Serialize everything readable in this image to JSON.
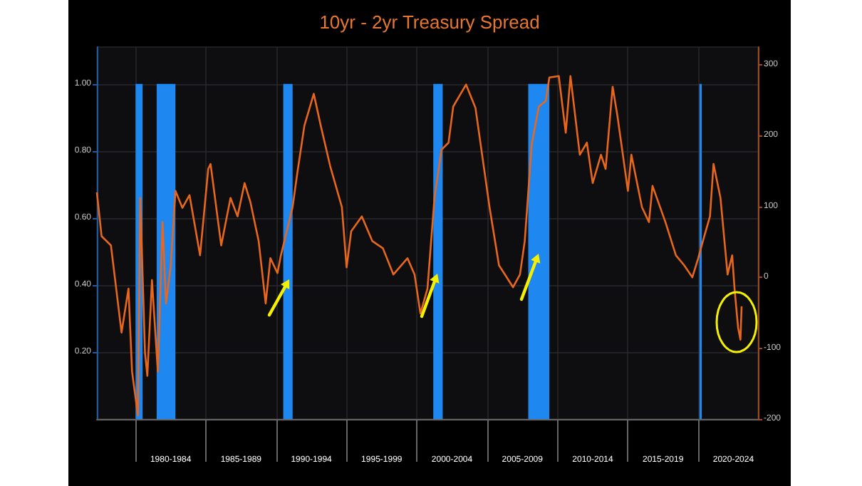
{
  "chart_data": {
    "type": "line",
    "title": "10yr - 2yr Treasury Spread",
    "series": [
      {
        "type": "area",
        "color": "#1e88f0",
        "axis": "y",
        "x": [
          "1980-01",
          "1980-01",
          "1980-07",
          "1980-07",
          "1981-07",
          "1981-07",
          "1982-11",
          "1982-11",
          "1990-07",
          "1990-07",
          "1991-03",
          "1991-03",
          "2001-03",
          "2001-03",
          "2001-11",
          "2001-11",
          "2007-12",
          "2007-12",
          "2009-06",
          "2009-06",
          "2020-02",
          "2020-02",
          "2020-04",
          "2020-04"
        ],
        "values": [
          0,
          1,
          1,
          0,
          0,
          1,
          1,
          0,
          0,
          1,
          1,
          0,
          0,
          1,
          1,
          0,
          0,
          1,
          1,
          0,
          0,
          1,
          1,
          0
        ]
      },
      {
        "color": "#e8671c",
        "axis": "y2",
        "x": [
          "1977-04",
          "1977-08",
          "1978-04",
          "1979-01",
          "1979-07",
          "1979-10",
          "1980-03",
          "1980-05",
          "1980-09",
          "1980-11",
          "1981-03",
          "1981-08",
          "1981-12",
          "1982-03",
          "1982-07",
          "1982-11",
          "1983-05",
          "1983-11",
          "1984-08",
          "1985-03",
          "1985-05",
          "1986-02",
          "1986-10",
          "1987-04",
          "1987-10",
          "1988-03",
          "1988-10",
          "1989-04",
          "1989-08",
          "1990-02",
          "1990-05",
          "1991-03",
          "1991-07",
          "1992-01",
          "1992-09",
          "1993-03",
          "1993-11",
          "1994-09",
          "1995-01",
          "1995-05",
          "1996-02",
          "1996-11",
          "1997-08",
          "1998-05",
          "1999-05",
          "1999-11",
          "2000-04",
          "2000-10",
          "2001-04",
          "2001-10",
          "2002-04",
          "2002-08",
          "2003-07",
          "2004-03",
          "2005-03",
          "2005-11",
          "2006-11",
          "2007-05",
          "2007-09",
          "2008-03",
          "2008-09",
          "2009-03",
          "2009-06",
          "2010-02",
          "2010-08",
          "2010-12",
          "2011-08",
          "2012-02",
          "2012-07",
          "2013-02",
          "2013-06",
          "2013-12",
          "2014-04",
          "2015-01",
          "2015-04",
          "2016-01",
          "2016-07",
          "2016-10",
          "2017-09",
          "2018-06",
          "2019-01",
          "2019-08",
          "2020-01",
          "2020-05",
          "2020-11",
          "2021-02",
          "2021-08",
          "2022-02",
          "2022-06",
          "2022-08",
          "2022-11",
          "2023-01",
          "2023-02"
        ],
        "values": [
          120,
          58,
          45,
          -78,
          -16,
          -133,
          -195,
          112,
          -106,
          -139,
          -4,
          -133,
          78,
          -37,
          16,
          122,
          98,
          116,
          31,
          153,
          160,
          45,
          112,
          86,
          133,
          106,
          51,
          -37,
          27,
          6,
          31,
          99,
          147,
          214,
          259,
          214,
          157,
          99,
          14,
          65,
          86,
          51,
          41,
          4,
          27,
          4,
          -51,
          -16,
          112,
          180,
          190,
          241,
          272,
          239,
          99,
          17,
          -14,
          4,
          51,
          188,
          241,
          249,
          282,
          284,
          204,
          284,
          173,
          190,
          133,
          173,
          153,
          269,
          229,
          122,
          173,
          99,
          78,
          129,
          78,
          31,
          17,
          0,
          27,
          51,
          86,
          160,
          112,
          4,
          31,
          -16,
          -71,
          -88,
          -41
        ]
      }
    ],
    "xlim": [
      "1977-04",
      "2024-04"
    ],
    "xticks": [
      {
        "value": "1980",
        "label": null
      },
      {
        "value": "1982-07",
        "label": "1980-1984"
      },
      {
        "value": "1985",
        "label": null
      },
      {
        "value": "1987-07",
        "label": "1985-1989"
      },
      {
        "value": "1990",
        "label": null
      },
      {
        "value": "1992-07",
        "label": "1990-1994"
      },
      {
        "value": "1995",
        "label": null
      },
      {
        "value": "1997-07",
        "label": "1995-1999"
      },
      {
        "value": "2000",
        "label": null
      },
      {
        "value": "2002-07",
        "label": "2000-2004"
      },
      {
        "value": "2005",
        "label": null
      },
      {
        "value": "2007-07",
        "label": "2005-2009"
      },
      {
        "value": "2010",
        "label": null
      },
      {
        "value": "2012-07",
        "label": "2010-2014"
      },
      {
        "value": "2015",
        "label": null
      },
      {
        "value": "2017-07",
        "label": "2015-2019"
      },
      {
        "value": "2020",
        "label": null
      },
      {
        "value": "2022-07",
        "label": "2020-2024"
      }
    ],
    "ylim": [
      0,
      1.11
    ],
    "yticks": [
      {
        "value": 0.2,
        "label": "0.20"
      },
      {
        "value": 0.4,
        "label": "0.40"
      },
      {
        "value": 0.6,
        "label": "0.60"
      },
      {
        "value": 0.8,
        "label": "0.80"
      },
      {
        "value": 1,
        "label": "1.00"
      }
    ],
    "y2lim": [
      -200,
      325
    ],
    "y2ticks": [
      -200,
      -100,
      0,
      100,
      200,
      300
    ],
    "grid": true,
    "marker": "none",
    "line_style": "solid"
  }
}
